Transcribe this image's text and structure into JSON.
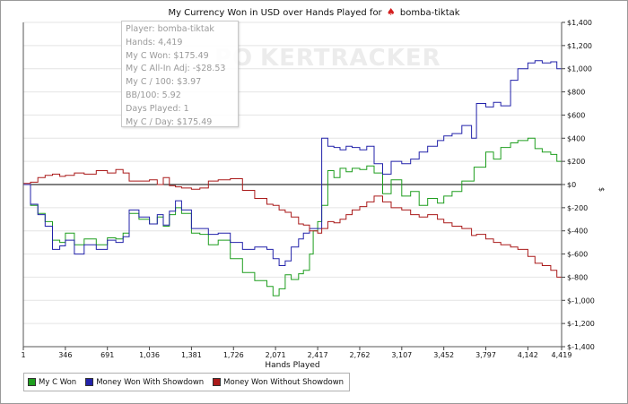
{
  "title": "My Currency Won in USD over Hands Played for",
  "title_player": "bomba-tiktak",
  "title_icon": "poker-spade-icon",
  "watermark": {
    "left": "PO",
    "right": "KERTRACKER"
  },
  "infobox": [
    "Player: bomba-tiktak",
    "Hands: 4,419",
    "My C Won: $175.49",
    "My C All-In Adj: -$28.53",
    "My C / 100: $3.97",
    "BB/100: 5.92",
    "Days Played: 1",
    "My C / Day: $175.49"
  ],
  "chart_data": {
    "type": "line",
    "title": "My Currency Won in USD over Hands Played for bomba-tiktak",
    "xlabel": "Hands Played",
    "ylabel": "$",
    "xlim": [
      1,
      4419
    ],
    "ylim": [
      -1400,
      1400
    ],
    "x_ticks": [
      "1",
      "346",
      "691",
      "1,036",
      "1,381",
      "1,726",
      "2,071",
      "2,417",
      "2,762",
      "3,107",
      "3,452",
      "3,797",
      "4,142",
      "4,419"
    ],
    "x_tick_values": [
      1,
      346,
      691,
      1036,
      1381,
      1726,
      2071,
      2417,
      2762,
      3107,
      3452,
      3797,
      4142,
      4419
    ],
    "y_ticks": [
      "$1,400",
      "$1,200",
      "$1,000",
      "$800",
      "$600",
      "$400",
      "$200",
      "$0",
      "$-200",
      "$-400",
      "$-600",
      "$-800",
      "$-1,000",
      "$-1,200",
      "$-1,400"
    ],
    "y_tick_values": [
      1400,
      1200,
      1000,
      800,
      600,
      400,
      200,
      0,
      -200,
      -400,
      -600,
      -800,
      -1000,
      -1200,
      -1400
    ],
    "grid": "horizontal",
    "legend_position": "bottom-left",
    "series": [
      {
        "name": "My C Won",
        "color": "#1e9e1e",
        "points": [
          [
            1,
            0
          ],
          [
            60,
            -180
          ],
          [
            120,
            -250
          ],
          [
            180,
            -320
          ],
          [
            240,
            -480
          ],
          [
            300,
            -500
          ],
          [
            346,
            -420
          ],
          [
            420,
            -520
          ],
          [
            500,
            -470
          ],
          [
            600,
            -520
          ],
          [
            691,
            -460
          ],
          [
            760,
            -470
          ],
          [
            820,
            -420
          ],
          [
            870,
            -250
          ],
          [
            950,
            -300
          ],
          [
            1036,
            -340
          ],
          [
            1100,
            -280
          ],
          [
            1150,
            -360
          ],
          [
            1200,
            -260
          ],
          [
            1250,
            -200
          ],
          [
            1300,
            -250
          ],
          [
            1381,
            -420
          ],
          [
            1450,
            -430
          ],
          [
            1520,
            -520
          ],
          [
            1600,
            -480
          ],
          [
            1700,
            -640
          ],
          [
            1800,
            -760
          ],
          [
            1900,
            -830
          ],
          [
            2000,
            -880
          ],
          [
            2050,
            -960
          ],
          [
            2100,
            -900
          ],
          [
            2150,
            -780
          ],
          [
            2200,
            -820
          ],
          [
            2260,
            -770
          ],
          [
            2300,
            -740
          ],
          [
            2350,
            -600
          ],
          [
            2380,
            -400
          ],
          [
            2417,
            -320
          ],
          [
            2450,
            -180
          ],
          [
            2500,
            120
          ],
          [
            2550,
            60
          ],
          [
            2600,
            140
          ],
          [
            2650,
            110
          ],
          [
            2700,
            140
          ],
          [
            2762,
            130
          ],
          [
            2820,
            160
          ],
          [
            2880,
            100
          ],
          [
            2950,
            -80
          ],
          [
            3020,
            40
          ],
          [
            3107,
            -100
          ],
          [
            3180,
            -60
          ],
          [
            3250,
            -180
          ],
          [
            3320,
            -120
          ],
          [
            3400,
            -160
          ],
          [
            3452,
            -100
          ],
          [
            3520,
            -60
          ],
          [
            3600,
            30
          ],
          [
            3700,
            150
          ],
          [
            3797,
            280
          ],
          [
            3860,
            220
          ],
          [
            3920,
            320
          ],
          [
            4000,
            360
          ],
          [
            4060,
            380
          ],
          [
            4142,
            400
          ],
          [
            4200,
            310
          ],
          [
            4260,
            280
          ],
          [
            4330,
            260
          ],
          [
            4380,
            200
          ],
          [
            4419,
            175
          ]
        ]
      },
      {
        "name": "Money Won With Showdown",
        "color": "#2222aa",
        "points": [
          [
            1,
            0
          ],
          [
            60,
            -170
          ],
          [
            120,
            -260
          ],
          [
            180,
            -360
          ],
          [
            240,
            -560
          ],
          [
            300,
            -530
          ],
          [
            346,
            -480
          ],
          [
            420,
            -600
          ],
          [
            500,
            -520
          ],
          [
            600,
            -560
          ],
          [
            691,
            -480
          ],
          [
            760,
            -500
          ],
          [
            820,
            -450
          ],
          [
            870,
            -220
          ],
          [
            950,
            -280
          ],
          [
            1036,
            -340
          ],
          [
            1100,
            -260
          ],
          [
            1150,
            -350
          ],
          [
            1200,
            -230
          ],
          [
            1250,
            -140
          ],
          [
            1300,
            -220
          ],
          [
            1381,
            -380
          ],
          [
            1450,
            -380
          ],
          [
            1520,
            -430
          ],
          [
            1600,
            -420
          ],
          [
            1700,
            -500
          ],
          [
            1800,
            -560
          ],
          [
            1900,
            -540
          ],
          [
            2000,
            -560
          ],
          [
            2050,
            -640
          ],
          [
            2100,
            -700
          ],
          [
            2150,
            -660
          ],
          [
            2200,
            -540
          ],
          [
            2260,
            -470
          ],
          [
            2300,
            -420
          ],
          [
            2350,
            -380
          ],
          [
            2417,
            -380
          ],
          [
            2450,
            400
          ],
          [
            2500,
            330
          ],
          [
            2550,
            320
          ],
          [
            2600,
            300
          ],
          [
            2650,
            330
          ],
          [
            2700,
            320
          ],
          [
            2762,
            300
          ],
          [
            2820,
            330
          ],
          [
            2880,
            180
          ],
          [
            2950,
            90
          ],
          [
            3020,
            200
          ],
          [
            3107,
            180
          ],
          [
            3180,
            220
          ],
          [
            3250,
            280
          ],
          [
            3320,
            330
          ],
          [
            3400,
            380
          ],
          [
            3452,
            420
          ],
          [
            3520,
            440
          ],
          [
            3600,
            510
          ],
          [
            3680,
            400
          ],
          [
            3720,
            700
          ],
          [
            3797,
            670
          ],
          [
            3860,
            710
          ],
          [
            3920,
            680
          ],
          [
            4000,
            900
          ],
          [
            4060,
            1000
          ],
          [
            4142,
            1050
          ],
          [
            4200,
            1070
          ],
          [
            4260,
            1050
          ],
          [
            4330,
            1060
          ],
          [
            4380,
            1000
          ],
          [
            4419,
            980
          ]
        ]
      },
      {
        "name": "Money Won Without Showdown",
        "color": "#aa1a1a",
        "points": [
          [
            1,
            10
          ],
          [
            60,
            20
          ],
          [
            120,
            60
          ],
          [
            180,
            80
          ],
          [
            240,
            90
          ],
          [
            300,
            70
          ],
          [
            346,
            80
          ],
          [
            420,
            100
          ],
          [
            500,
            90
          ],
          [
            600,
            120
          ],
          [
            691,
            100
          ],
          [
            760,
            130
          ],
          [
            820,
            100
          ],
          [
            870,
            30
          ],
          [
            950,
            30
          ],
          [
            1036,
            40
          ],
          [
            1100,
            0
          ],
          [
            1150,
            60
          ],
          [
            1200,
            -10
          ],
          [
            1250,
            -20
          ],
          [
            1300,
            -30
          ],
          [
            1381,
            -40
          ],
          [
            1450,
            -30
          ],
          [
            1520,
            30
          ],
          [
            1600,
            40
          ],
          [
            1700,
            50
          ],
          [
            1800,
            -50
          ],
          [
            1900,
            -120
          ],
          [
            2000,
            -170
          ],
          [
            2050,
            -180
          ],
          [
            2100,
            -220
          ],
          [
            2150,
            -240
          ],
          [
            2200,
            -280
          ],
          [
            2260,
            -340
          ],
          [
            2300,
            -350
          ],
          [
            2350,
            -400
          ],
          [
            2417,
            -420
          ],
          [
            2450,
            -380
          ],
          [
            2500,
            -320
          ],
          [
            2550,
            -330
          ],
          [
            2600,
            -300
          ],
          [
            2650,
            -260
          ],
          [
            2700,
            -220
          ],
          [
            2762,
            -190
          ],
          [
            2820,
            -150
          ],
          [
            2880,
            -100
          ],
          [
            2950,
            -150
          ],
          [
            3020,
            -200
          ],
          [
            3107,
            -220
          ],
          [
            3180,
            -260
          ],
          [
            3250,
            -280
          ],
          [
            3320,
            -260
          ],
          [
            3400,
            -300
          ],
          [
            3452,
            -330
          ],
          [
            3520,
            -360
          ],
          [
            3600,
            -380
          ],
          [
            3680,
            -440
          ],
          [
            3720,
            -430
          ],
          [
            3797,
            -470
          ],
          [
            3860,
            -500
          ],
          [
            3920,
            -520
          ],
          [
            4000,
            -540
          ],
          [
            4060,
            -560
          ],
          [
            4142,
            -620
          ],
          [
            4200,
            -680
          ],
          [
            4260,
            -700
          ],
          [
            4330,
            -740
          ],
          [
            4380,
            -800
          ],
          [
            4419,
            -810
          ]
        ]
      }
    ]
  }
}
